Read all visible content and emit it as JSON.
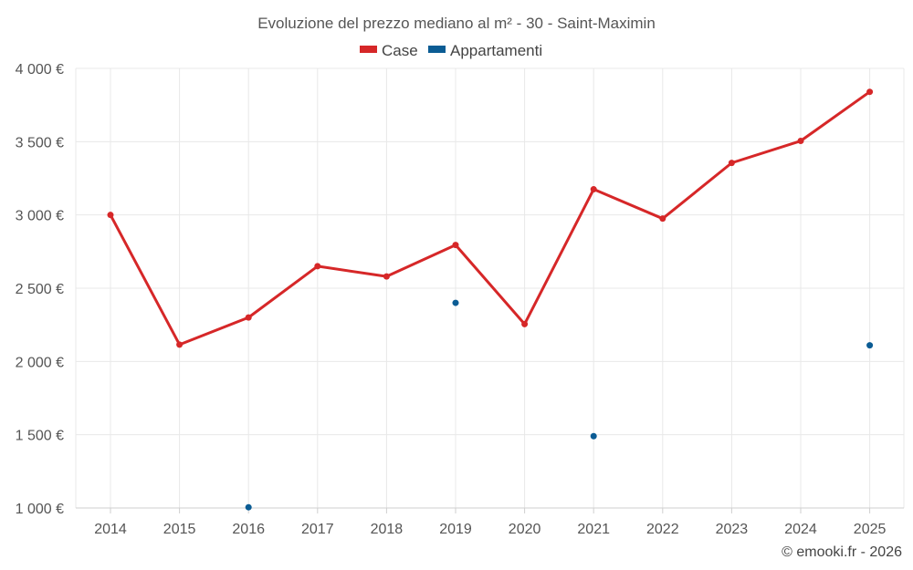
{
  "chart_data": {
    "type": "line",
    "title": "Evoluzione del prezzo mediano al m² - 30 - Saint-Maximin",
    "categories": [
      "2014",
      "2015",
      "2016",
      "2017",
      "2018",
      "2019",
      "2020",
      "2021",
      "2022",
      "2023",
      "2024",
      "2025"
    ],
    "series": [
      {
        "name": "Case",
        "color": "#d62728",
        "style": "line",
        "values": [
          3000,
          2115,
          2300,
          2650,
          2580,
          2795,
          2255,
          3175,
          2975,
          3355,
          3505,
          3840
        ]
      },
      {
        "name": "Appartamenti",
        "color": "#0b5c94",
        "style": "points",
        "values": [
          null,
          null,
          1005,
          null,
          null,
          2400,
          null,
          1490,
          null,
          null,
          null,
          2110
        ]
      }
    ],
    "ylim": [
      1000,
      4000
    ],
    "yticks": [
      1000,
      1500,
      2000,
      2500,
      3000,
      3500,
      4000
    ],
    "ytick_labels": [
      "1 000 €",
      "1 500 €",
      "2 000 €",
      "2 500 €",
      "3 000 €",
      "3 500 €",
      "4 000 €"
    ],
    "grid": true,
    "legend_position": "top-center",
    "credit": "© emooki.fr - 2026"
  }
}
